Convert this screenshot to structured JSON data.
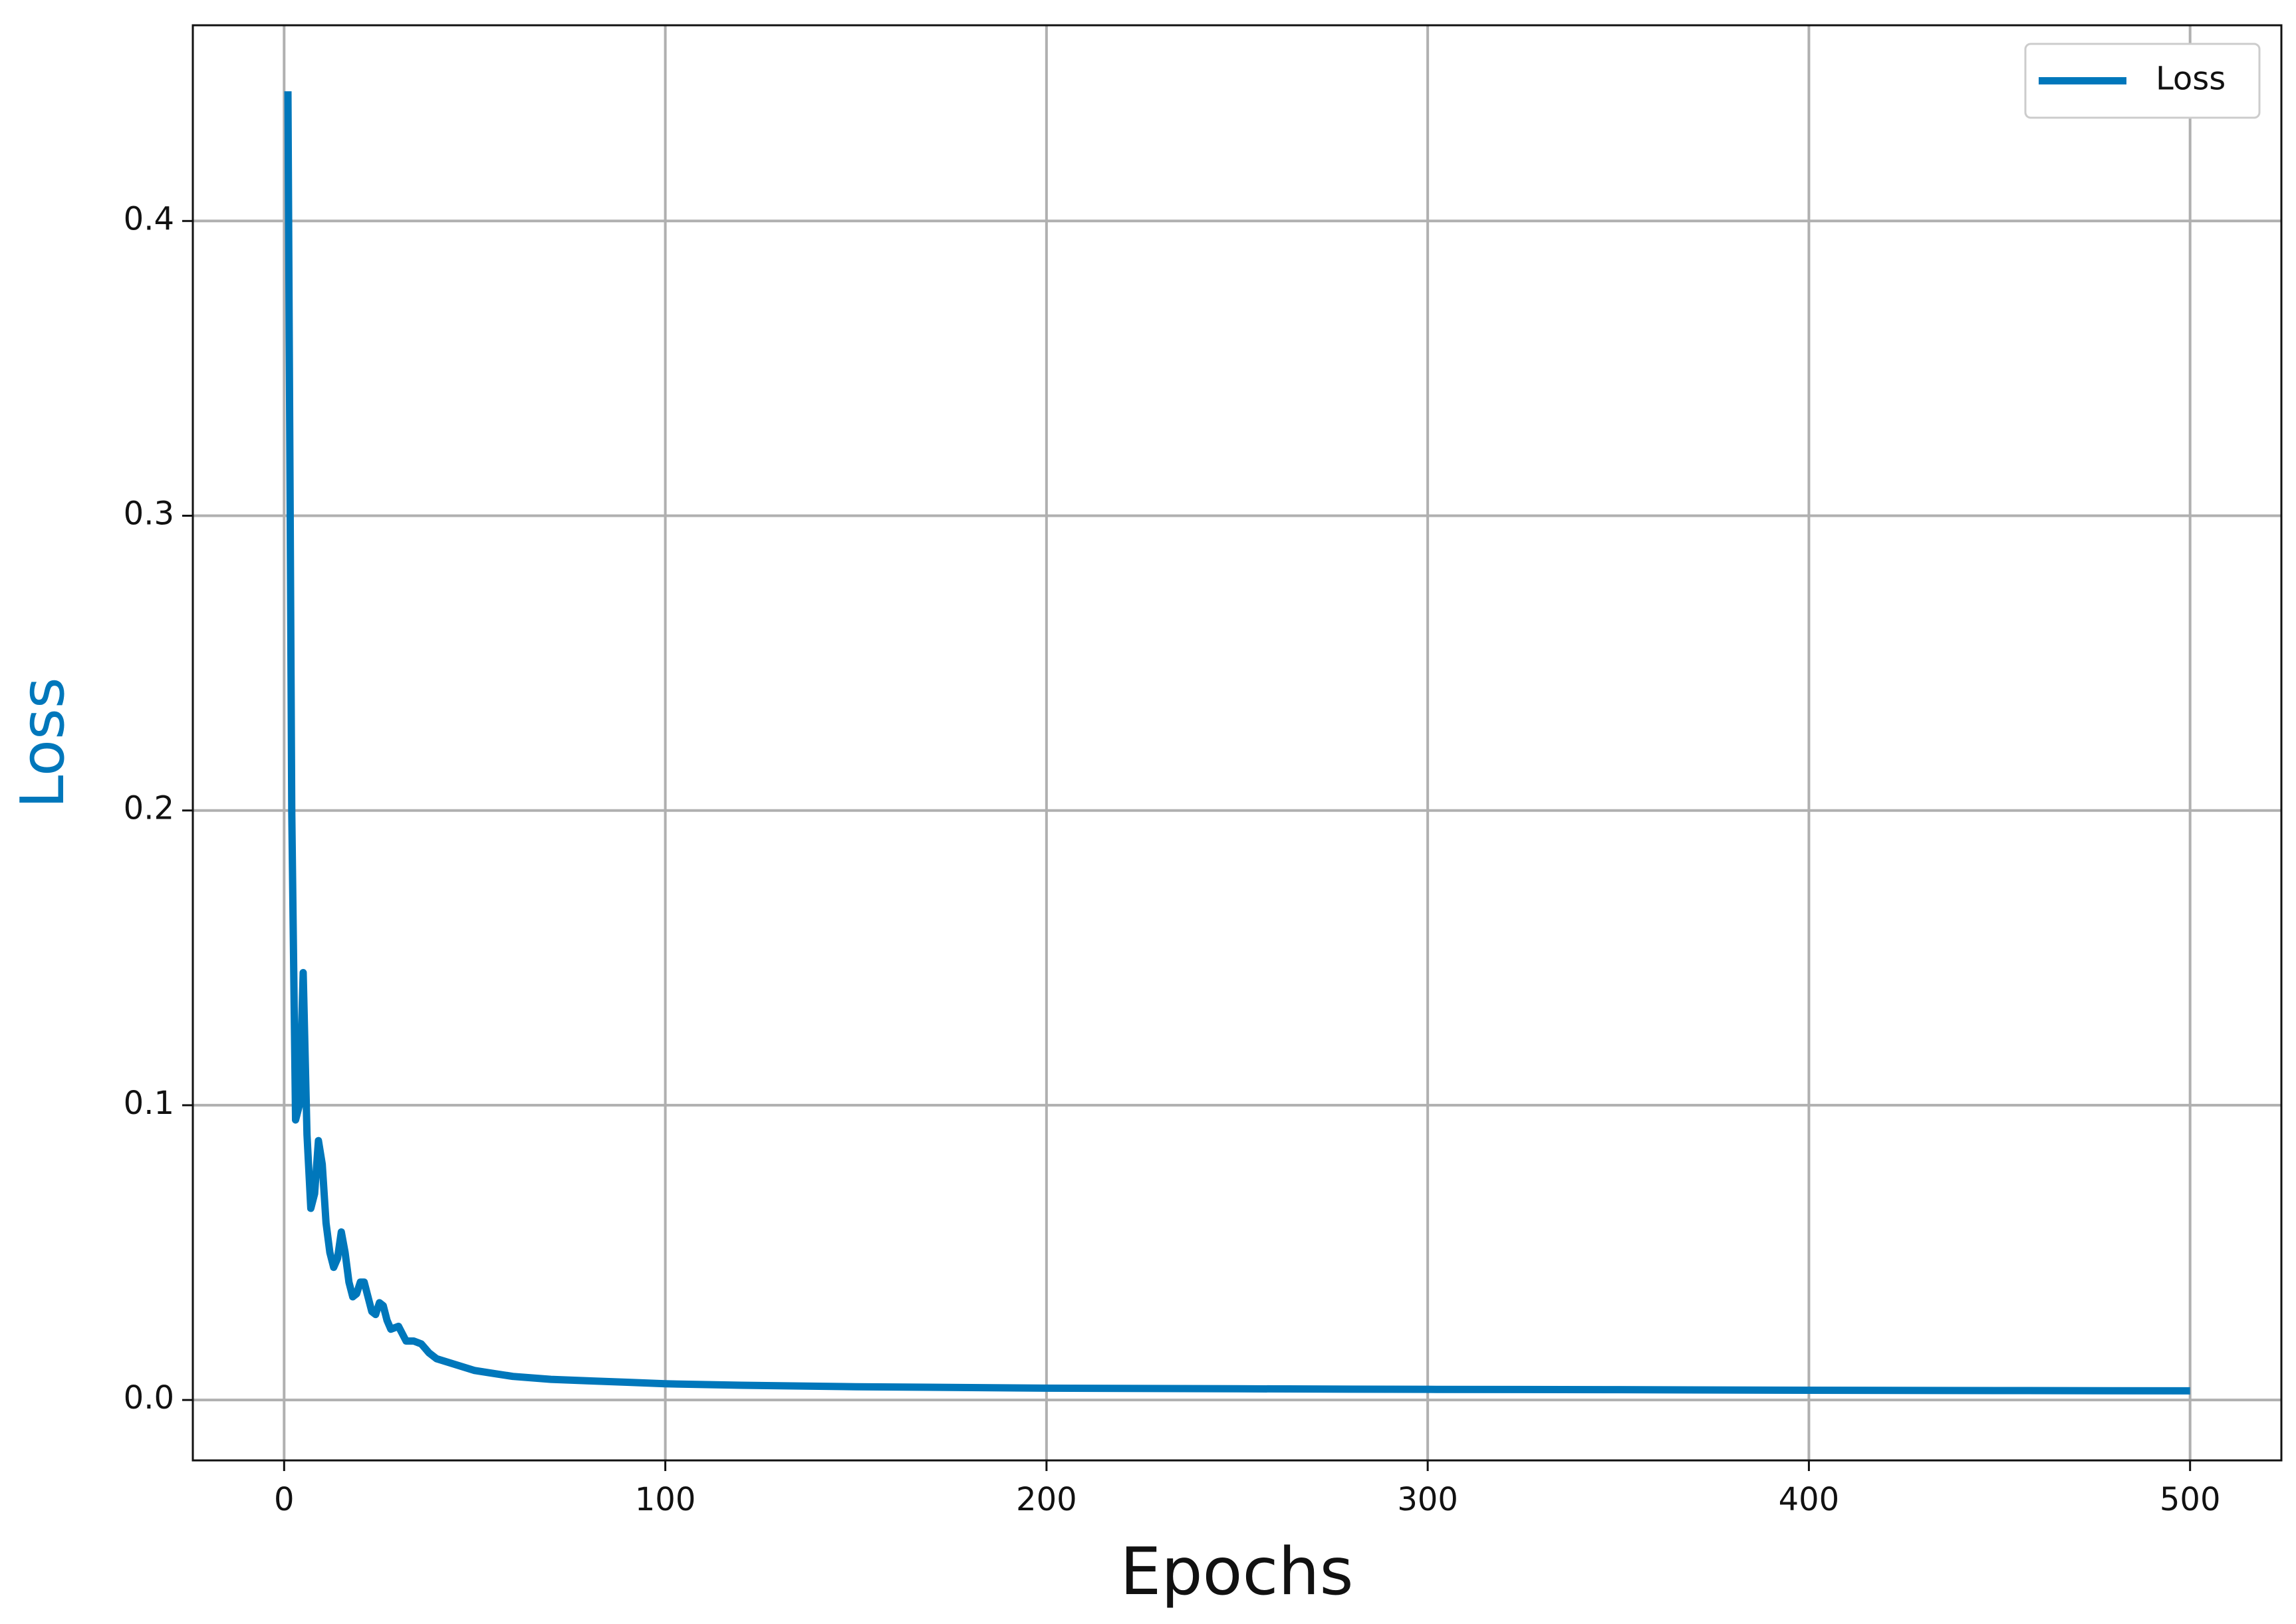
{
  "chart_data": {
    "type": "line",
    "xlabel": "Epochs",
    "ylabel": "Loss",
    "ylabel_color": "#0077bb",
    "x": [
      1,
      2,
      3,
      4,
      5,
      6,
      7,
      8,
      9,
      10,
      11,
      12,
      13,
      14,
      15,
      16,
      17,
      18,
      19,
      20,
      21,
      22,
      23,
      24,
      25,
      26,
      27,
      28,
      30,
      32,
      34,
      36,
      38,
      40,
      45,
      50,
      55,
      60,
      70,
      80,
      90,
      100,
      120,
      150,
      200,
      250,
      300,
      350,
      400,
      450,
      500
    ],
    "series": [
      {
        "name": "Loss",
        "color": "#0077bb",
        "values": [
          0.444,
          0.2,
          0.095,
          0.1,
          0.145,
          0.09,
          0.065,
          0.07,
          0.088,
          0.08,
          0.06,
          0.05,
          0.045,
          0.048,
          0.057,
          0.05,
          0.04,
          0.035,
          0.036,
          0.04,
          0.04,
          0.035,
          0.03,
          0.029,
          0.033,
          0.032,
          0.027,
          0.024,
          0.025,
          0.02,
          0.02,
          0.019,
          0.016,
          0.014,
          0.012,
          0.01,
          0.009,
          0.008,
          0.007,
          0.0065,
          0.006,
          0.0055,
          0.005,
          0.0045,
          0.004,
          0.0038,
          0.0036,
          0.0035,
          0.0033,
          0.0032,
          0.0031
        ]
      }
    ],
    "xlim": [
      -23.95,
      523.95
    ],
    "ylim": [
      -0.0205,
      0.4664
    ],
    "xticks": [
      0,
      100,
      200,
      300,
      400,
      500
    ],
    "yticks": [
      {
        "value": 0,
        "label": "0.0"
      },
      0.1,
      0.2,
      0.3,
      0.4
    ],
    "grid": true,
    "legend": "upper right"
  }
}
